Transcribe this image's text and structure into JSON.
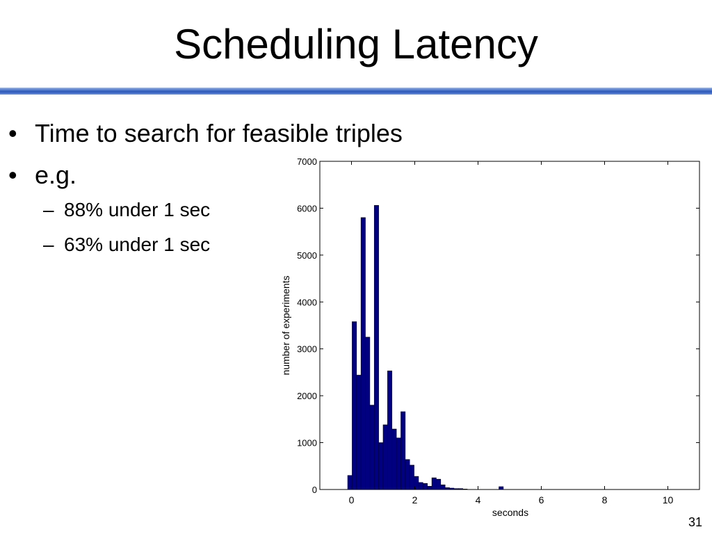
{
  "slide": {
    "title": "Scheduling Latency",
    "number": "31"
  },
  "bullets": [
    {
      "text": "Time to search for feasible triples",
      "marker": "•",
      "sub": []
    },
    {
      "text": "e.g.",
      "marker": "•",
      "sub": [
        {
          "text": "88% under 1 sec",
          "marker": "–"
        },
        {
          "text": "63% under 1 sec",
          "marker": "–"
        }
      ]
    }
  ],
  "colors": {
    "bar_fill": "#000080",
    "title_rule": "#2a56b8"
  },
  "chart_data": {
    "type": "bar",
    "title": "",
    "xlabel": "seconds",
    "ylabel": "number of experiments",
    "xlim": [
      -1,
      11
    ],
    "ylim": [
      0,
      7000
    ],
    "xticks": [
      0,
      2,
      4,
      6,
      8,
      10
    ],
    "yticks": [
      0,
      1000,
      2000,
      3000,
      4000,
      5000,
      6000,
      7000
    ],
    "bin_width": 0.14,
    "grid": false,
    "legend": "none",
    "x": [
      -0.05,
      0.09,
      0.23,
      0.37,
      0.51,
      0.65,
      0.79,
      0.93,
      1.07,
      1.21,
      1.35,
      1.49,
      1.63,
      1.77,
      1.91,
      2.05,
      2.19,
      2.33,
      2.47,
      2.61,
      2.75,
      2.89,
      3.03,
      3.17,
      3.31,
      3.45,
      3.59,
      4.73
    ],
    "values": [
      300,
      3580,
      2440,
      5800,
      3250,
      1800,
      6060,
      1000,
      1380,
      2530,
      1290,
      1100,
      1660,
      640,
      520,
      280,
      150,
      130,
      70,
      250,
      220,
      100,
      40,
      30,
      20,
      20,
      10,
      60
    ]
  }
}
